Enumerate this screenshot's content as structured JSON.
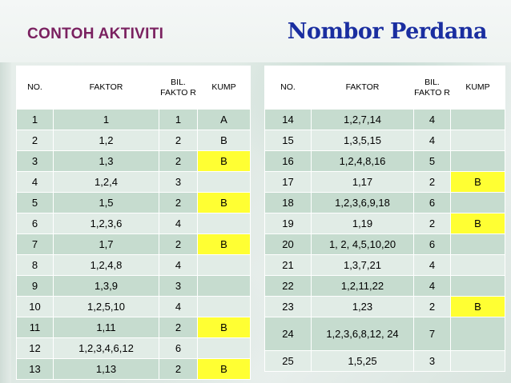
{
  "title_left": "CONTOH AKTIVITI",
  "title_right": "Nombor Perdana",
  "headers": {
    "no": "NO.",
    "faktor": "FAKTOR",
    "bil": "BIL. FAKTO R",
    "kump": "KUMP"
  },
  "left_rows": [
    {
      "no": "1",
      "faktor": "1",
      "bil": "1",
      "kump": "A",
      "hl": false
    },
    {
      "no": "2",
      "faktor": "1,2",
      "bil": "2",
      "kump": "B",
      "hl": false
    },
    {
      "no": "3",
      "faktor": "1,3",
      "bil": "2",
      "kump": "B",
      "hl": true
    },
    {
      "no": "4",
      "faktor": "1,2,4",
      "bil": "3",
      "kump": "",
      "hl": false
    },
    {
      "no": "5",
      "faktor": "1,5",
      "bil": "2",
      "kump": "B",
      "hl": true
    },
    {
      "no": "6",
      "faktor": "1,2,3,6",
      "bil": "4",
      "kump": "",
      "hl": false
    },
    {
      "no": "7",
      "faktor": "1,7",
      "bil": "2",
      "kump": "B",
      "hl": true
    },
    {
      "no": "8",
      "faktor": "1,2,4,8",
      "bil": "4",
      "kump": "",
      "hl": false
    },
    {
      "no": "9",
      "faktor": "1,3,9",
      "bil": "3",
      "kump": "",
      "hl": false
    },
    {
      "no": "10",
      "faktor": "1,2,5,10",
      "bil": "4",
      "kump": "",
      "hl": false
    },
    {
      "no": "11",
      "faktor": "1,11",
      "bil": "2",
      "kump": "B",
      "hl": true
    },
    {
      "no": "12",
      "faktor": "1,2,3,4,6,12",
      "bil": "6",
      "kump": "",
      "hl": false
    },
    {
      "no": "13",
      "faktor": "1,13",
      "bil": "2",
      "kump": "B",
      "hl": true
    }
  ],
  "right_rows": [
    {
      "no": "14",
      "faktor": "1,2,7,14",
      "bil": "4",
      "kump": "",
      "hl": false
    },
    {
      "no": "15",
      "faktor": "1,3,5,15",
      "bil": "4",
      "kump": "",
      "hl": false
    },
    {
      "no": "16",
      "faktor": "1,2,4,8,16",
      "bil": "5",
      "kump": "",
      "hl": false
    },
    {
      "no": "17",
      "faktor": "1,17",
      "bil": "2",
      "kump": "B",
      "hl": true
    },
    {
      "no": "18",
      "faktor": "1,2,3,6,9,18",
      "bil": "6",
      "kump": "",
      "hl": false
    },
    {
      "no": "19",
      "faktor": "1,19",
      "bil": "2",
      "kump": "B",
      "hl": true
    },
    {
      "no": "20",
      "faktor": "1, 2, 4,5,10,20",
      "bil": "6",
      "kump": "",
      "hl": false
    },
    {
      "no": "21",
      "faktor": "1,3,7,21",
      "bil": "4",
      "kump": "",
      "hl": false
    },
    {
      "no": "22",
      "faktor": "1,2,11,22",
      "bil": "4",
      "kump": "",
      "hl": false
    },
    {
      "no": "23",
      "faktor": "1,23",
      "bil": "2",
      "kump": "B",
      "hl": true
    },
    {
      "no": "24",
      "faktor": "1,2,3,6,8,12, 24",
      "bil": "7",
      "kump": "",
      "hl": false
    },
    {
      "no": "25",
      "faktor": "1,5,25",
      "bil": "3",
      "kump": "",
      "hl": false
    }
  ],
  "colors": {
    "title_left": "#7a2160",
    "title_right": "#1a2ea0",
    "row_dark": "#c6dccf",
    "row_light": "#e1ece6",
    "highlight": "#ffff33"
  }
}
